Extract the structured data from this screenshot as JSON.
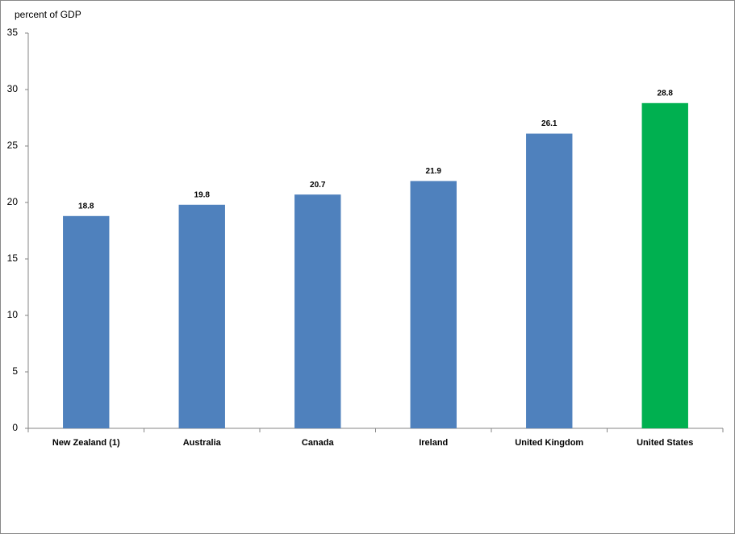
{
  "chart_data": {
    "type": "bar",
    "y_axis_label": "percent of GDP",
    "categories": [
      "New Zealand (1)",
      "Australia",
      "Canada",
      "Ireland",
      "United Kingdom",
      "United States"
    ],
    "values": [
      18.8,
      19.8,
      20.7,
      21.9,
      26.1,
      28.8
    ],
    "colors": [
      "#4f81bd",
      "#4f81bd",
      "#4f81bd",
      "#4f81bd",
      "#4f81bd",
      "#00b050"
    ],
    "ylim": [
      0,
      35
    ],
    "yticks": [
      0,
      5,
      10,
      15,
      20,
      25,
      30,
      35
    ],
    "grid": false
  }
}
